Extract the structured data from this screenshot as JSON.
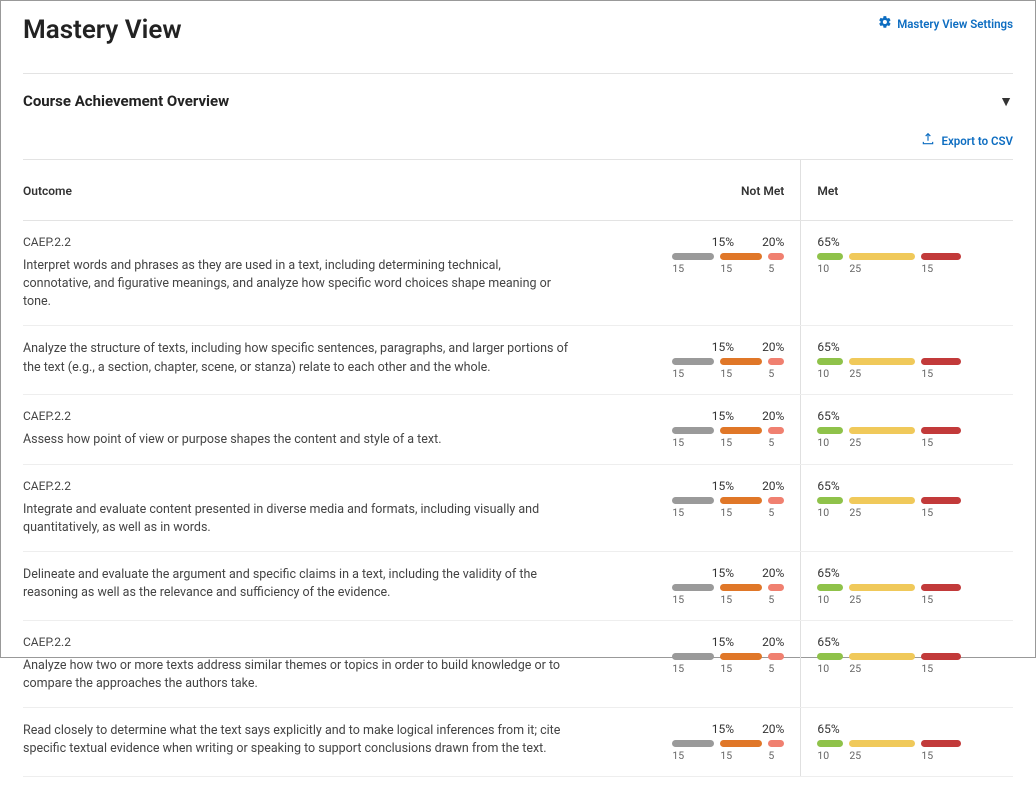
{
  "header": {
    "title": "Mastery View",
    "settings_label": "Mastery View Settings"
  },
  "section": {
    "title": "Course Achievement Overview",
    "export_label": "Export to CSV"
  },
  "columns": {
    "outcome": "Outcome",
    "not_met": "Not Met",
    "met": "Met"
  },
  "colors": {
    "gray": "#9a9a9a",
    "orange": "#e07728",
    "coral": "#f08070",
    "green": "#8fc24a",
    "yellow": "#f0c95a",
    "red": "#c23a3a",
    "link": "#0d6dc1"
  },
  "not_met_widths": {
    "gray": 42,
    "orange": 42,
    "coral": 16
  },
  "met_widths": {
    "green": 26,
    "yellow": 66,
    "red": 40
  },
  "rows": [
    {
      "code": "CAEP.2.2",
      "desc": "Interpret words and phrases as they are used in a text, including determining technical, connotative, and figurative meanings, and analyze how specific word choices shape meaning or tone.",
      "nm_pct1": "15%",
      "nm_pct2": "20%",
      "nm_n1": "15",
      "nm_n2": "15",
      "nm_n3": "5",
      "m_pct": "65%",
      "m_n1": "10",
      "m_n2": "25",
      "m_n3": "15"
    },
    {
      "code": "",
      "desc": "Analyze the structure of texts, including how specific sentences, paragraphs, and larger portions of the text (e.g., a section, chapter, scene, or stanza) relate to each other and the whole.",
      "nm_pct1": "15%",
      "nm_pct2": "20%",
      "nm_n1": "15",
      "nm_n2": "15",
      "nm_n3": "5",
      "m_pct": "65%",
      "m_n1": "10",
      "m_n2": "25",
      "m_n3": "15"
    },
    {
      "code": "CAEP.2.2",
      "desc": "Assess how point of view or purpose shapes the content and style of a text.",
      "nm_pct1": "15%",
      "nm_pct2": "20%",
      "nm_n1": "15",
      "nm_n2": "15",
      "nm_n3": "5",
      "m_pct": "65%",
      "m_n1": "10",
      "m_n2": "25",
      "m_n3": "15"
    },
    {
      "code": "CAEP.2.2",
      "desc": "Integrate and evaluate content presented in diverse media and formats, including visually and quantitatively, as well as in words.",
      "nm_pct1": "15%",
      "nm_pct2": "20%",
      "nm_n1": "15",
      "nm_n2": "15",
      "nm_n3": "5",
      "m_pct": "65%",
      "m_n1": "10",
      "m_n2": "25",
      "m_n3": "15"
    },
    {
      "code": "",
      "desc": "Delineate and evaluate the argument and specific claims in a text, including the validity of the reasoning as well as the relevance and sufficiency of the evidence.",
      "nm_pct1": "15%",
      "nm_pct2": "20%",
      "nm_n1": "15",
      "nm_n2": "15",
      "nm_n3": "5",
      "m_pct": "65%",
      "m_n1": "10",
      "m_n2": "25",
      "m_n3": "15"
    },
    {
      "code": "CAEP.2.2",
      "desc": "Analyze how two or more texts address similar themes or topics in order to build knowledge or to compare the approaches the authors take.",
      "nm_pct1": "15%",
      "nm_pct2": "20%",
      "nm_n1": "15",
      "nm_n2": "15",
      "nm_n3": "5",
      "m_pct": "65%",
      "m_n1": "10",
      "m_n2": "25",
      "m_n3": "15"
    },
    {
      "code": "",
      "desc": "Read closely to determine what the text says explicitly and to make logical inferences from it; cite specific textual evidence when writing or speaking to support conclusions drawn from the text.",
      "nm_pct1": "15%",
      "nm_pct2": "20%",
      "nm_n1": "15",
      "nm_n2": "15",
      "nm_n3": "5",
      "m_pct": "65%",
      "m_n1": "10",
      "m_n2": "25",
      "m_n3": "15"
    }
  ]
}
